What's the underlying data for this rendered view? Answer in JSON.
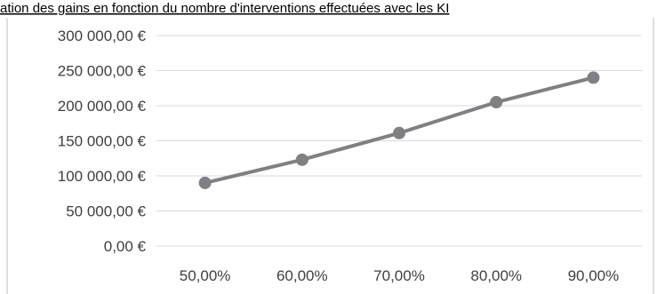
{
  "chart_data": {
    "type": "line",
    "title": "ation des gains en fonction du nombre d'interventions effectuées avec les KI",
    "categories": [
      "50,00%",
      "60,00%",
      "70,00%",
      "80,00%",
      "90,00%"
    ],
    "series": [
      {
        "values": [
          90000,
          123000,
          161000,
          205000,
          240000
        ]
      }
    ],
    "y_ticks": [
      0,
      50000,
      100000,
      150000,
      200000,
      250000,
      300000
    ],
    "y_tick_labels": [
      "0,00 €",
      "50 000,00 €",
      "100 000,00 €",
      "150 000,00 €",
      "200 000,00 €",
      "250 000,00 €",
      "300 000,00 €"
    ],
    "ylim": [
      0,
      300000
    ],
    "grid": true,
    "legend": "none",
    "colors": {
      "line": "#7f8083",
      "grid": "#d9d9d9",
      "text": "#404040",
      "frame": "#bfbfbf"
    }
  }
}
